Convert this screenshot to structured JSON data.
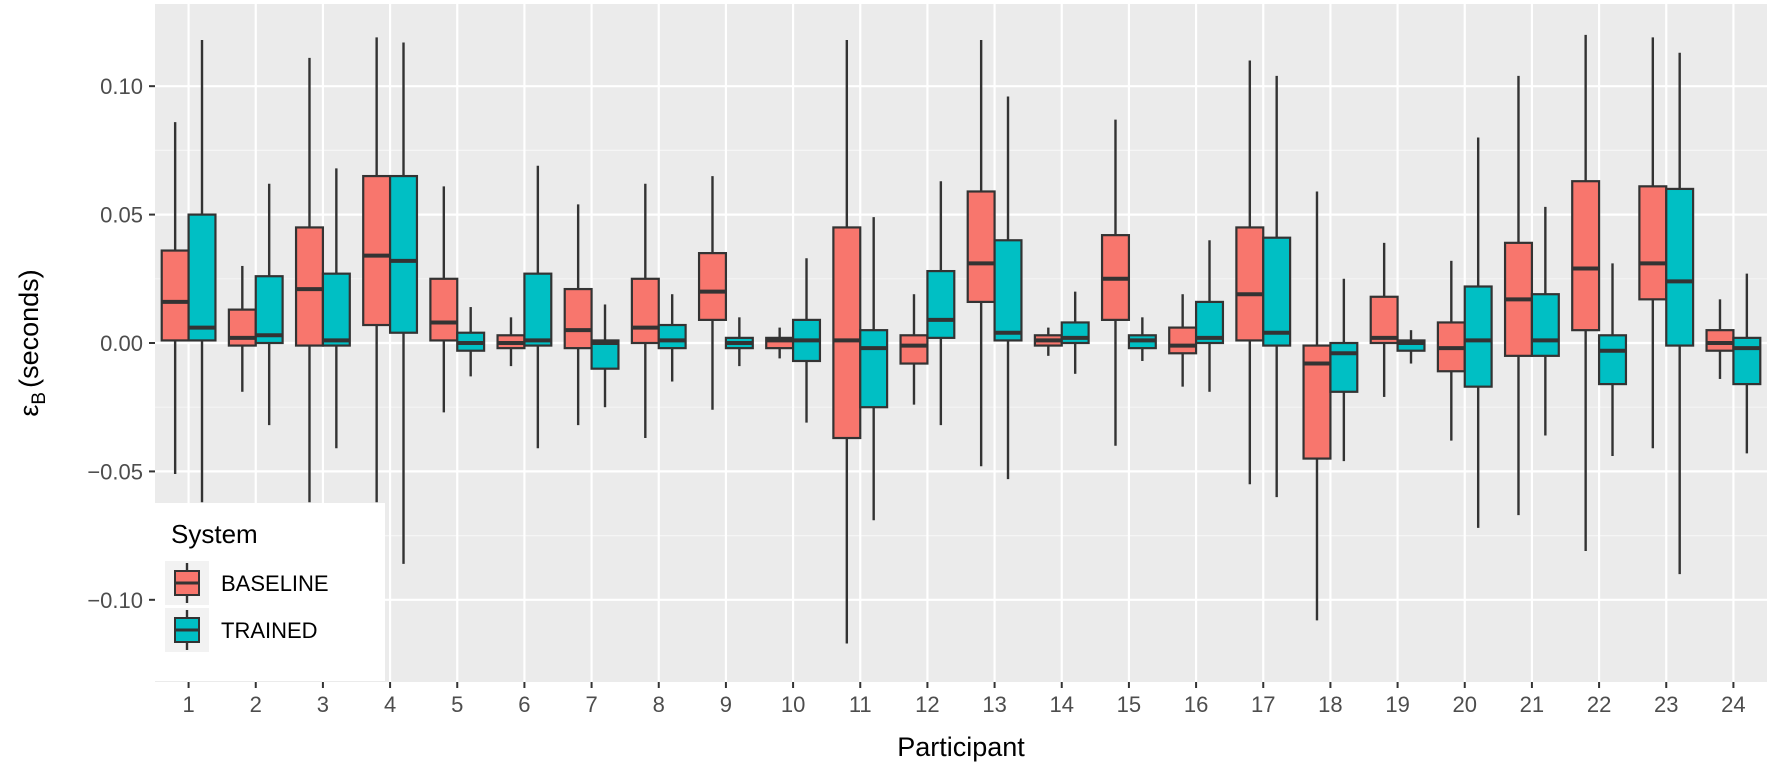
{
  "chart_data": {
    "type": "boxplot",
    "title": "",
    "xlabel": "Participant",
    "ylabel": "ε_B (seconds)",
    "ylabel_symbol": "ε",
    "ylabel_subscript": "B",
    "ylabel_unit": "(seconds)",
    "ylim": [
      -0.132,
      0.132
    ],
    "y_ticks": [
      -0.1,
      -0.05,
      0.0,
      0.05,
      0.1
    ],
    "y_tick_labels": [
      "−0.10",
      "−0.05",
      "0.00",
      "0.05",
      "0.10"
    ],
    "categories": [
      "1",
      "2",
      "3",
      "4",
      "5",
      "6",
      "7",
      "8",
      "9",
      "10",
      "11",
      "12",
      "13",
      "14",
      "15",
      "16",
      "17",
      "18",
      "19",
      "20",
      "21",
      "22",
      "23",
      "24"
    ],
    "legend": {
      "title": "System",
      "position": "bottom-left",
      "entries": [
        {
          "name": "BASELINE",
          "color": "#F8766D"
        },
        {
          "name": "TRAINED",
          "color": "#00BFC4"
        }
      ]
    },
    "colors": {
      "panel_bg": "#EBEBEB",
      "grid_major": "#FFFFFF",
      "grid_minor": "#F5F5F5",
      "box_outline": "#333333"
    },
    "series": [
      {
        "name": "BASELINE",
        "color": "#F8766D",
        "boxes": [
          {
            "lower": -0.051,
            "q1": 0.001,
            "median": 0.016,
            "q3": 0.036,
            "upper": 0.086
          },
          {
            "lower": -0.019,
            "q1": -0.001,
            "median": 0.002,
            "q3": 0.013,
            "upper": 0.03
          },
          {
            "lower": -0.062,
            "q1": -0.001,
            "median": 0.021,
            "q3": 0.045,
            "upper": 0.111
          },
          {
            "lower": -0.062,
            "q1": 0.007,
            "median": 0.034,
            "q3": 0.065,
            "upper": 0.119
          },
          {
            "lower": -0.027,
            "q1": 0.001,
            "median": 0.008,
            "q3": 0.025,
            "upper": 0.061
          },
          {
            "lower": -0.009,
            "q1": -0.002,
            "median": 0.0,
            "q3": 0.003,
            "upper": 0.01
          },
          {
            "lower": -0.032,
            "q1": -0.002,
            "median": 0.005,
            "q3": 0.021,
            "upper": 0.054
          },
          {
            "lower": -0.037,
            "q1": 0.0,
            "median": 0.006,
            "q3": 0.025,
            "upper": 0.062
          },
          {
            "lower": -0.026,
            "q1": 0.009,
            "median": 0.02,
            "q3": 0.035,
            "upper": 0.065
          },
          {
            "lower": -0.006,
            "q1": -0.002,
            "median": 0.001,
            "q3": 0.002,
            "upper": 0.006
          },
          {
            "lower": -0.117,
            "q1": -0.037,
            "median": 0.001,
            "q3": 0.045,
            "upper": 0.118
          },
          {
            "lower": -0.024,
            "q1": -0.008,
            "median": -0.001,
            "q3": 0.003,
            "upper": 0.019
          },
          {
            "lower": -0.048,
            "q1": 0.016,
            "median": 0.031,
            "q3": 0.059,
            "upper": 0.118
          },
          {
            "lower": -0.005,
            "q1": -0.001,
            "median": 0.001,
            "q3": 0.003,
            "upper": 0.006
          },
          {
            "lower": -0.04,
            "q1": 0.009,
            "median": 0.025,
            "q3": 0.042,
            "upper": 0.087
          },
          {
            "lower": -0.017,
            "q1": -0.004,
            "median": -0.001,
            "q3": 0.006,
            "upper": 0.019
          },
          {
            "lower": -0.055,
            "q1": 0.001,
            "median": 0.019,
            "q3": 0.045,
            "upper": 0.11
          },
          {
            "lower": -0.108,
            "q1": -0.045,
            "median": -0.008,
            "q3": -0.001,
            "upper": 0.059
          },
          {
            "lower": -0.021,
            "q1": 0.0,
            "median": 0.002,
            "q3": 0.018,
            "upper": 0.039
          },
          {
            "lower": -0.038,
            "q1": -0.011,
            "median": -0.002,
            "q3": 0.008,
            "upper": 0.032
          },
          {
            "lower": -0.067,
            "q1": -0.005,
            "median": 0.017,
            "q3": 0.039,
            "upper": 0.104
          },
          {
            "lower": -0.081,
            "q1": 0.005,
            "median": 0.029,
            "q3": 0.063,
            "upper": 0.12
          },
          {
            "lower": -0.041,
            "q1": 0.017,
            "median": 0.031,
            "q3": 0.061,
            "upper": 0.119
          },
          {
            "lower": -0.014,
            "q1": -0.003,
            "median": 0.0,
            "q3": 0.005,
            "upper": 0.017
          }
        ]
      },
      {
        "name": "TRAINED",
        "color": "#00BFC4",
        "boxes": [
          {
            "lower": -0.062,
            "q1": 0.001,
            "median": 0.006,
            "q3": 0.05,
            "upper": 0.118
          },
          {
            "lower": -0.032,
            "q1": 0.0,
            "median": 0.003,
            "q3": 0.026,
            "upper": 0.062
          },
          {
            "lower": -0.041,
            "q1": -0.001,
            "median": 0.001,
            "q3": 0.027,
            "upper": 0.068
          },
          {
            "lower": -0.086,
            "q1": 0.004,
            "median": 0.032,
            "q3": 0.065,
            "upper": 0.117
          },
          {
            "lower": -0.013,
            "q1": -0.003,
            "median": 0.0,
            "q3": 0.004,
            "upper": 0.014
          },
          {
            "lower": -0.041,
            "q1": -0.001,
            "median": 0.001,
            "q3": 0.027,
            "upper": 0.069
          },
          {
            "lower": -0.025,
            "q1": -0.01,
            "median": 0.0,
            "q3": 0.001,
            "upper": 0.015
          },
          {
            "lower": -0.015,
            "q1": -0.002,
            "median": 0.001,
            "q3": 0.007,
            "upper": 0.019
          },
          {
            "lower": -0.009,
            "q1": -0.002,
            "median": 0.0,
            "q3": 0.002,
            "upper": 0.01
          },
          {
            "lower": -0.031,
            "q1": -0.007,
            "median": 0.001,
            "q3": 0.009,
            "upper": 0.033
          },
          {
            "lower": -0.069,
            "q1": -0.025,
            "median": -0.002,
            "q3": 0.005,
            "upper": 0.049
          },
          {
            "lower": -0.032,
            "q1": 0.002,
            "median": 0.009,
            "q3": 0.028,
            "upper": 0.063
          },
          {
            "lower": -0.053,
            "q1": 0.001,
            "median": 0.004,
            "q3": 0.04,
            "upper": 0.096
          },
          {
            "lower": -0.012,
            "q1": 0.0,
            "median": 0.002,
            "q3": 0.008,
            "upper": 0.02
          },
          {
            "lower": -0.007,
            "q1": -0.002,
            "median": 0.001,
            "q3": 0.003,
            "upper": 0.01
          },
          {
            "lower": -0.019,
            "q1": 0.0,
            "median": 0.002,
            "q3": 0.016,
            "upper": 0.04
          },
          {
            "lower": -0.06,
            "q1": -0.001,
            "median": 0.004,
            "q3": 0.041,
            "upper": 0.104
          },
          {
            "lower": -0.046,
            "q1": -0.019,
            "median": -0.004,
            "q3": 0.0,
            "upper": 0.025
          },
          {
            "lower": -0.008,
            "q1": -0.003,
            "median": 0.0,
            "q3": 0.001,
            "upper": 0.005
          },
          {
            "lower": -0.072,
            "q1": -0.017,
            "median": 0.001,
            "q3": 0.022,
            "upper": 0.08
          },
          {
            "lower": -0.036,
            "q1": -0.005,
            "median": 0.001,
            "q3": 0.019,
            "upper": 0.053
          },
          {
            "lower": -0.044,
            "q1": -0.016,
            "median": -0.003,
            "q3": 0.003,
            "upper": 0.031
          },
          {
            "lower": -0.09,
            "q1": -0.001,
            "median": 0.024,
            "q3": 0.06,
            "upper": 0.113
          },
          {
            "lower": -0.043,
            "q1": -0.016,
            "median": -0.002,
            "q3": 0.002,
            "upper": 0.027
          }
        ]
      }
    ]
  }
}
